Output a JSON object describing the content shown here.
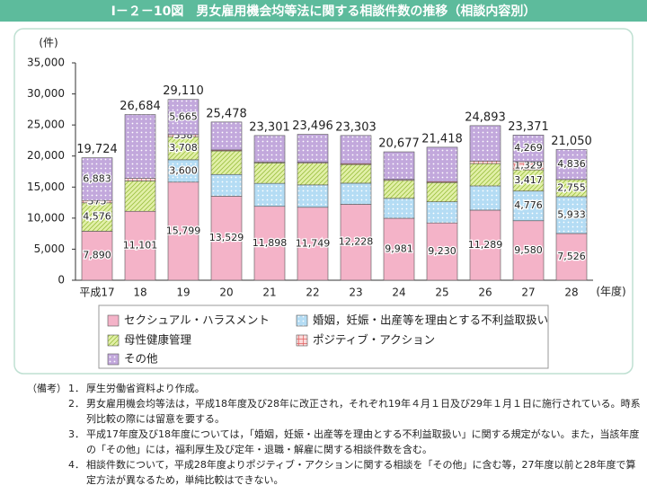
{
  "chart_data": {
    "type": "stacked-bar",
    "title": "Ⅰ－２－10図　男女雇用機会均等法に関する相談件数の推移（相談内容別）",
    "y_unit": "(件)",
    "x_unit": "(年度)",
    "categories": [
      "平成17",
      "18",
      "19",
      "20",
      "21",
      "22",
      "23",
      "24",
      "25",
      "26",
      "27",
      "28"
    ],
    "ylim": [
      0,
      35000
    ],
    "yticks": [
      0,
      {
        "value": 5000,
        "label": "5,000"
      },
      {
        "value": 10000,
        "label": "10,000"
      },
      {
        "value": 15000,
        "label": "15,000"
      },
      {
        "value": 20000,
        "label": "20,000"
      },
      {
        "value": 25000,
        "label": "25,000"
      },
      {
        "value": 30000,
        "label": "30,000"
      },
      {
        "value": 35000,
        "label": "35,000"
      }
    ],
    "grid": false,
    "series": [
      {
        "name": "セクシュアル・ハラスメント",
        "color": "#f4b3c8",
        "pattern": "none",
        "values": [
          7890,
          11101,
          15799,
          13529,
          11898,
          11749,
          12228,
          9981,
          9230,
          11289,
          9580,
          7526
        ],
        "value_labels": [
          "7,890",
          "11,101",
          "15,799",
          "13,529",
          "11,898",
          "11,749",
          "12,228",
          "9,981",
          "9,230",
          "11,289",
          "9,580",
          "7,526"
        ]
      },
      {
        "name": "婚姻，妊娠・出産等を理由とする不利益取扱い",
        "color": "#b4dcf4",
        "pattern": "dots",
        "values": [
          null,
          null,
          3600,
          3500,
          3700,
          3600,
          3400,
          3200,
          3400,
          3900,
          4776,
          5933
        ],
        "value_labels": [
          null,
          null,
          "3,600",
          null,
          null,
          null,
          null,
          null,
          null,
          null,
          "4,776",
          "5,933"
        ]
      },
      {
        "name": "母性健康管理",
        "color": "#e2f0a8",
        "pattern": "hatch",
        "values": [
          4576,
          4900,
          3708,
          3800,
          3300,
          3500,
          3000,
          2900,
          3100,
          3600,
          3417,
          2755
        ],
        "value_labels": [
          "4,576",
          null,
          "3,708",
          null,
          null,
          null,
          null,
          null,
          null,
          null,
          "3,417",
          "2,755"
        ]
      },
      {
        "name": "ポジティブ・アクション",
        "color": "#fbdada",
        "pattern": "cross",
        "values": [
          375,
          400,
          338,
          150,
          150,
          150,
          150,
          150,
          150,
          400,
          1329,
          null
        ],
        "value_labels": [
          "375",
          null,
          "338",
          null,
          null,
          null,
          null,
          null,
          null,
          null,
          "1,329",
          null
        ]
      },
      {
        "name": "その他",
        "color": "#c2a8dc",
        "pattern": "dots",
        "values": [
          6883,
          10283,
          5665,
          4499,
          4253,
          4497,
          4525,
          4446,
          5538,
          5704,
          4269,
          4836
        ],
        "value_labels": [
          "6,883",
          null,
          "5,665",
          null,
          null,
          null,
          null,
          null,
          null,
          null,
          "4,269",
          "4,836"
        ]
      }
    ],
    "totals": {
      "values": [
        19724,
        26684,
        29110,
        25478,
        23301,
        23496,
        23303,
        20677,
        21418,
        24893,
        23371,
        21050
      ],
      "value_labels": [
        "19,724",
        "26,684",
        "29,110",
        "25,478",
        "23,301",
        "23,496",
        "23,303",
        "20,677",
        "21,418",
        "24,893",
        "23,371",
        "21,050"
      ]
    }
  },
  "notes": {
    "heading": "（備考）",
    "items": [
      {
        "num": "1．",
        "text": "厚生労働省資料より作成。"
      },
      {
        "num": "2．",
        "text": "男女雇用機会均等法は，平成18年度及び28年に改正され，それぞれ19年４月１日及び29年１月１日に施行されている。時系列比較の際には留意を要する。"
      },
      {
        "num": "3．",
        "text": "平成17年度及び18年度については，「婚姻，妊娠・出産等を理由とする不利益取扱い」に関する規定がない。また，当該年度の「その他」には，福利厚生及び定年・退職・解雇に関する相談件数を含む。"
      },
      {
        "num": "4．",
        "text": "相談件数について，平成28年度よりポジティブ・アクションに関する相談を「その他」に含む等，27年度以前と28年度で算定方法が異なるため，単純比較はできない。"
      }
    ]
  }
}
